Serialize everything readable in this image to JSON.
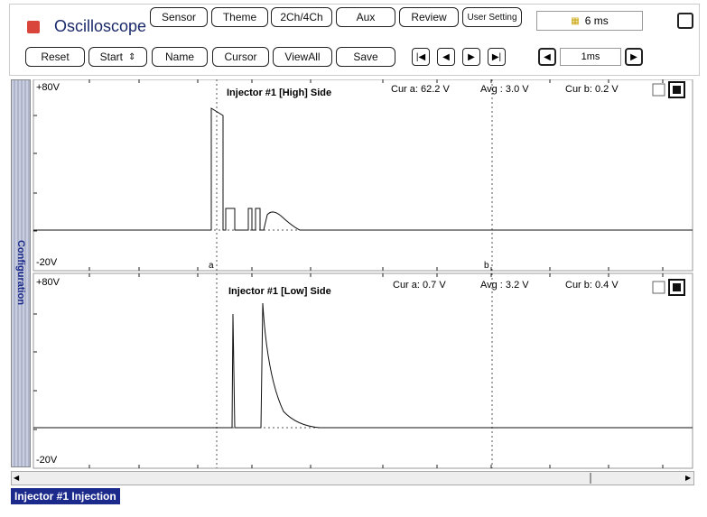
{
  "toolbar": {
    "title": "Oscilloscope",
    "buttons": [
      "Sensor",
      "Theme",
      "2Ch/4Ch",
      "Aux",
      "Review",
      "User Setting"
    ],
    "time_display": "6 ms"
  },
  "controls": {
    "buttons": [
      "Reset",
      "Start",
      "Name",
      "Cursor",
      "ViewAll",
      "Save"
    ],
    "timebase": "1ms"
  },
  "sidebar": "Configuration",
  "panels": [
    {
      "title": "Injector #1 [High] Side",
      "ymax": "+80V",
      "ymin": "-20V",
      "cur_a": "Cur a: 62.2 V",
      "avg": "Avg : 3.0 V",
      "cur_b": "Cur b: 0.2 V",
      "cursor_a": "a",
      "cursor_b": "b"
    },
    {
      "title": "Injector #1 [Low] Side",
      "ymax": "+80V",
      "ymin": "-20V",
      "cur_a": "Cur a: 0.7 V",
      "avg": "Avg : 3.2 V",
      "cur_b": "Cur b: 0.4 V"
    }
  ],
  "status": "Injector #1 Injection"
}
